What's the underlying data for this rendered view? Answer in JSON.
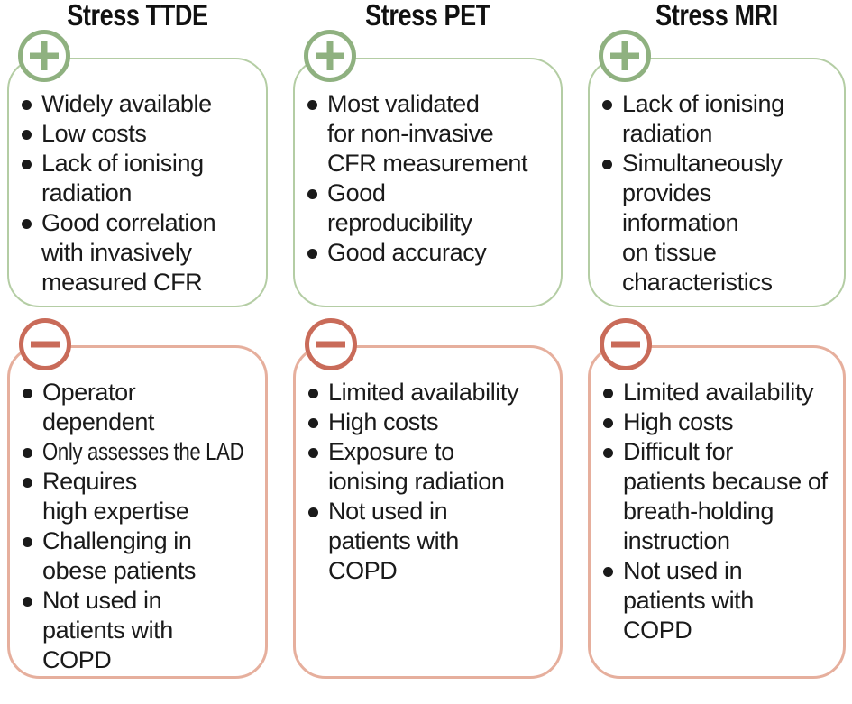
{
  "figure": {
    "name": "stress-imaging-modalities-pros-cons",
    "colors": {
      "green_accent": "#8FB180",
      "green_border": "#B4CDA4",
      "red_accent": "#C96B59",
      "red_border": "#E6AF9D",
      "text": "#1A1A1A",
      "background": "#FFFFFF"
    },
    "icons": {
      "pros": "plus-icon",
      "cons": "minus-icon"
    },
    "columns": [
      {
        "title": "Stress TTDE",
        "pros": [
          {
            "text": "Widely available"
          },
          {
            "text": "Low costs"
          },
          {
            "text": "Lack of ionising\nradiation"
          },
          {
            "text": "Good correlation\nwith invasively\nmeasured CFR"
          }
        ],
        "cons": [
          {
            "text": "Operator\ndependent"
          },
          {
            "text": "Only assesses the LAD",
            "condensed": true
          },
          {
            "text": "Requires\nhigh expertise"
          },
          {
            "text": "Challenging in\nobese patients"
          },
          {
            "text": "Not used in\npatients with\nCOPD"
          }
        ]
      },
      {
        "title": "Stress PET",
        "pros": [
          {
            "text": "Most validated\nfor non-invasive\nCFR measurement"
          },
          {
            "text": "Good\nreproducibility"
          },
          {
            "text": "Good accuracy"
          }
        ],
        "cons": [
          {
            "text": "Limited availability"
          },
          {
            "text": "High costs"
          },
          {
            "text": "Exposure to\nionising radiation"
          },
          {
            "text": "Not used in\npatients with\nCOPD"
          }
        ]
      },
      {
        "title": "Stress MRI",
        "pros": [
          {
            "text": "Lack of ionising\nradiation"
          },
          {
            "text": "Simultaneously\nprovides\ninformation\non tissue\ncharacteristics"
          }
        ],
        "cons": [
          {
            "text": "Limited availability"
          },
          {
            "text": "High costs"
          },
          {
            "text": "Difficult for\npatients because of\nbreath-holding\ninstruction"
          },
          {
            "text": "Not used in\npatients with\nCOPD"
          }
        ]
      }
    ]
  }
}
